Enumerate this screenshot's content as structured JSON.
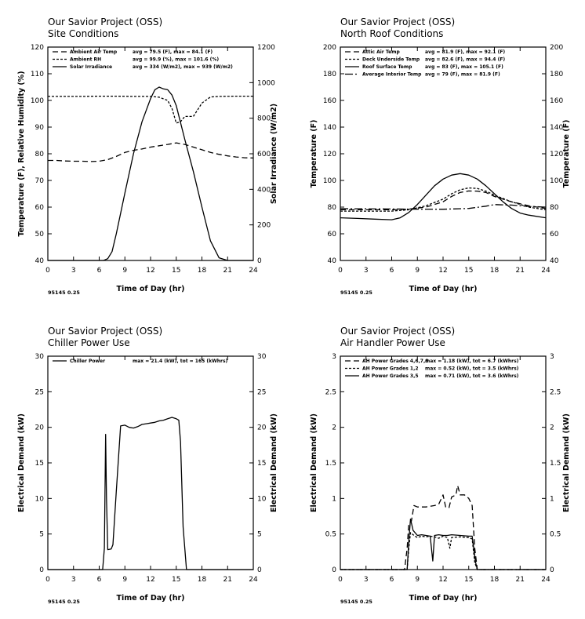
{
  "chart_data": [
    {
      "type": "line",
      "id": "c1",
      "title": "Our Savior Project (OSS)",
      "subtitle": "Site Conditions",
      "xlabel": "Time of Day (hr)",
      "ylabel": "Temperature (F), Relative Humidity (%)",
      "ylabel2": "Solar Irradiance (W/m2)",
      "xlim": [
        0,
        24
      ],
      "xticks": [
        0,
        3,
        6,
        9,
        12,
        15,
        18,
        21,
        24
      ],
      "ylim": [
        40,
        120
      ],
      "yticks": [
        40,
        50,
        60,
        70,
        80,
        90,
        100,
        110,
        120
      ],
      "ylim2": [
        0,
        1200
      ],
      "yticks2": [
        0,
        200,
        400,
        600,
        800,
        1000,
        1200
      ],
      "footer": "95145 0.25",
      "grid": false,
      "legend_position": "top-left",
      "series": [
        {
          "name": "Ambient Air Temp",
          "stats": "avg = 79.5 (F), max = 84.1 (F)",
          "dash": "7,4",
          "axis": "left",
          "x": [
            0,
            1,
            2,
            3,
            4,
            5,
            6,
            7,
            8,
            9,
            10,
            11,
            12,
            13,
            14,
            15,
            16,
            17,
            18,
            19,
            20,
            21,
            22,
            23,
            24
          ],
          "y": [
            77.5,
            77.5,
            77.3,
            77.2,
            77.2,
            77.1,
            77.2,
            77.8,
            79,
            80.5,
            81.3,
            81.8,
            82.5,
            83,
            83.5,
            84.1,
            83.5,
            82.5,
            81.5,
            80.5,
            79.8,
            79.2,
            78.8,
            78.5,
            78.4
          ]
        },
        {
          "name": "Ambient RH",
          "stats": "avg = 99.9 (%), max = 101.6 (%)",
          "dash": "3,2",
          "axis": "left",
          "x": [
            0,
            2,
            4,
            6,
            8,
            10,
            12,
            13,
            14,
            14.5,
            15,
            15.5,
            16,
            17,
            18,
            19,
            20,
            22,
            24
          ],
          "y": [
            101.5,
            101.5,
            101.5,
            101.6,
            101.6,
            101.5,
            101.5,
            101.2,
            100,
            97,
            91.5,
            92,
            94,
            94,
            99,
            101.3,
            101.5,
            101.6,
            101.6
          ]
        },
        {
          "name": "Solar Irradiance",
          "stats": "avg = 334 (W/m2), max = 939 (W/m2)",
          "dash": "",
          "axis": "right",
          "x": [
            0,
            6.5,
            7,
            7.5,
            8,
            9,
            10,
            11,
            12,
            12.5,
            13,
            13.5,
            14,
            14.5,
            15,
            16,
            17,
            18,
            19,
            20,
            21,
            24
          ],
          "y": [
            0,
            0,
            10,
            50,
            150,
            380,
            600,
            780,
            910,
            960,
            975,
            965,
            960,
            930,
            870,
            680,
            500,
            300,
            110,
            15,
            0,
            0
          ]
        }
      ]
    },
    {
      "type": "line",
      "id": "c2",
      "title": "Our Savior Project (OSS)",
      "subtitle": "North Roof Conditions",
      "xlabel": "Time of Day (hr)",
      "ylabel": "Temperature (F)",
      "ylabel2": "Temperature (F)",
      "xlim": [
        0,
        24
      ],
      "xticks": [
        0,
        3,
        6,
        9,
        12,
        15,
        18,
        21,
        24
      ],
      "ylim": [
        40,
        200
      ],
      "yticks": [
        40,
        60,
        80,
        100,
        120,
        140,
        160,
        180,
        200
      ],
      "ylim2": [
        40,
        200
      ],
      "yticks2": [
        40,
        60,
        80,
        100,
        120,
        140,
        160,
        180,
        200
      ],
      "footer": "95145 0.25",
      "grid": false,
      "legend_position": "top-left",
      "series": [
        {
          "name": "Attic Air Temp",
          "stats": "avg = 81.9 (F), max = 92.1 (F)",
          "dash": "7,4",
          "axis": "left",
          "x": [
            0,
            3,
            6,
            8,
            10,
            12,
            13,
            14,
            15,
            16,
            17,
            18,
            20,
            22,
            24
          ],
          "y": [
            78,
            78,
            78,
            78.5,
            80,
            84,
            88,
            91,
            92.1,
            92,
            91,
            88,
            84,
            81,
            79
          ]
        },
        {
          "name": "Deck Underside Temp",
          "stats": "avg = 82.6 (F), max = 94.4 (F)",
          "dash": "3,2",
          "axis": "left",
          "x": [
            0,
            3,
            6,
            8,
            10,
            12,
            13,
            14,
            15,
            16,
            17,
            18,
            20,
            22,
            24
          ],
          "y": [
            77,
            77,
            77,
            78,
            81,
            86,
            90,
            93,
            94.4,
            94,
            92,
            89,
            84,
            80,
            78
          ]
        },
        {
          "name": "Roof Surface Temp",
          "stats": "avg = 83 (F), max = 105.1 (F)",
          "dash": "",
          "axis": "left",
          "x": [
            0,
            2,
            4,
            6,
            7,
            8,
            9,
            10,
            11,
            12,
            13,
            14,
            15,
            16,
            17,
            18,
            19,
            20,
            21,
            22,
            24
          ],
          "y": [
            72,
            71.5,
            71,
            70.5,
            72,
            76,
            82,
            89,
            96,
            101,
            104,
            105.1,
            104,
            101,
            96,
            90,
            84,
            79,
            75.5,
            74,
            72
          ]
        },
        {
          "name": "Average Interior Temp",
          "stats": "avg = 79 (F), max = 81.9 (F)",
          "dash": "10,3,2,3",
          "axis": "left",
          "x": [
            0,
            3,
            6,
            9,
            12,
            15,
            17,
            18,
            20,
            22,
            24
          ],
          "y": [
            78.8,
            78.7,
            78.6,
            78.5,
            78.4,
            79,
            80.7,
            81.9,
            81.5,
            80.5,
            80
          ]
        }
      ]
    },
    {
      "type": "line",
      "id": "c3",
      "title": "Our Savior Project (OSS)",
      "subtitle": "Chiller Power Use",
      "xlabel": "Time of Day (hr)",
      "ylabel": "Electrical Demand (kW)",
      "ylabel2": "Electrical Demand (kW)",
      "xlim": [
        0,
        24
      ],
      "xticks": [
        0,
        3,
        6,
        9,
        12,
        15,
        18,
        21,
        24
      ],
      "ylim": [
        0,
        30
      ],
      "yticks": [
        0,
        5,
        10,
        15,
        20,
        25,
        30
      ],
      "ylim2": [
        0,
        30
      ],
      "yticks2": [
        0,
        5,
        10,
        15,
        20,
        25,
        30
      ],
      "footer": "95145 0.25",
      "grid": false,
      "legend_position": "top-left",
      "series": [
        {
          "name": "Chiller Power",
          "stats": "max = 21.4 (kW), tot = 165 (kWhrs)",
          "dash": "",
          "axis": "left",
          "x": [
            0,
            6.4,
            6.6,
            6.75,
            6.85,
            7.0,
            7.4,
            7.6,
            8,
            8.5,
            9,
            9.5,
            10,
            10.5,
            11,
            11.5,
            12,
            12.5,
            13,
            13.5,
            14,
            14.5,
            15,
            15.3,
            15.5,
            15.8,
            16.2,
            24
          ],
          "y": [
            0,
            0,
            3,
            19,
            10,
            2.8,
            2.9,
            3.5,
            11,
            20.2,
            20.3,
            20,
            19.9,
            20.1,
            20.4,
            20.5,
            20.6,
            20.7,
            20.9,
            21.0,
            21.2,
            21.4,
            21.2,
            21.0,
            18,
            6,
            0,
            0
          ]
        }
      ]
    },
    {
      "type": "line",
      "id": "c4",
      "title": "Our Savior Project (OSS)",
      "subtitle": "Air Handler Power Use",
      "xlabel": "Time of Day (hr)",
      "ylabel": "Electrical Demand (kW)",
      "ylabel2": "Electrical Demand (kW)",
      "xlim": [
        0,
        24
      ],
      "xticks": [
        0,
        3,
        6,
        9,
        12,
        15,
        18,
        21,
        24
      ],
      "ylim": [
        0,
        3
      ],
      "yticks": [
        0,
        0.5,
        1,
        1.5,
        2,
        2.5,
        3
      ],
      "ylim2": [
        0,
        3
      ],
      "yticks2": [
        0,
        0.5,
        1,
        1.5,
        2,
        2.5,
        3
      ],
      "footer": "95145 0.25",
      "grid": false,
      "legend_position": "top-left",
      "series": [
        {
          "name": "AH Power Grades 4,6,7,8",
          "stats": "max = 1.18 (kW), tot = 6.7 (kWhrs)",
          "dash": "7,4",
          "axis": "left",
          "x": [
            0,
            7.5,
            7.8,
            8.0,
            8.3,
            8.6,
            9,
            10,
            11,
            11.5,
            12,
            12.3,
            12.7,
            13,
            13.5,
            13.7,
            14,
            14.5,
            15,
            15.4,
            15.7,
            16,
            24
          ],
          "y": [
            0,
            0,
            0.3,
            0.65,
            0.68,
            0.9,
            0.88,
            0.88,
            0.9,
            0.92,
            1.05,
            0.88,
            0.87,
            1.02,
            1.05,
            1.18,
            1.05,
            1.05,
            1.0,
            0.9,
            0.3,
            0,
            0
          ]
        },
        {
          "name": "AH Power Grades 1,2",
          "stats": "max = 0.52 (kW), tot = 3.5 (kWhrs)",
          "dash": "3,2",
          "axis": "left",
          "x": [
            0,
            7.8,
            8.0,
            8.2,
            8.6,
            9,
            9.5,
            10,
            10.5,
            11,
            11.5,
            12,
            12.5,
            12.8,
            13,
            14,
            15,
            15.4,
            15.7,
            16,
            24
          ],
          "y": [
            0,
            0,
            0.3,
            0.52,
            0.48,
            0.45,
            0.47,
            0.46,
            0.47,
            0.46,
            0.44,
            0.47,
            0.45,
            0.3,
            0.45,
            0.46,
            0.45,
            0.43,
            0.1,
            0,
            0
          ]
        },
        {
          "name": "AH Power Grades 3,5",
          "stats": "max = 0.71 (kW), tot = 3.6 (kWhrs)",
          "dash": "",
          "axis": "left",
          "x": [
            0,
            7.8,
            8.0,
            8.2,
            8.5,
            9,
            9.5,
            10,
            10.5,
            10.8,
            11,
            11.5,
            12,
            12.5,
            13,
            14,
            15,
            15.4,
            15.8,
            16,
            24
          ],
          "y": [
            0,
            0,
            0.4,
            0.71,
            0.55,
            0.48,
            0.49,
            0.48,
            0.47,
            0.12,
            0.48,
            0.49,
            0.48,
            0.48,
            0.49,
            0.48,
            0.47,
            0.47,
            0.1,
            0,
            0
          ]
        }
      ]
    }
  ]
}
